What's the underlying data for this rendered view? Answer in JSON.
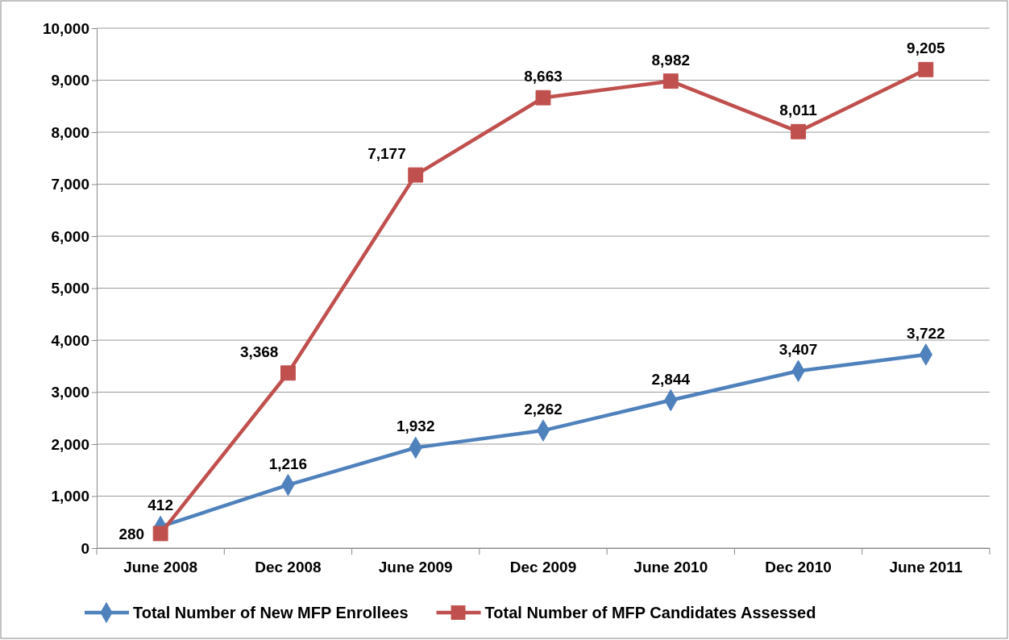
{
  "chart_data": {
    "type": "line",
    "categories": [
      "June 2008",
      "Dec 2008",
      "June 2009",
      "Dec 2009",
      "June 2010",
      "Dec 2010",
      "June 2011"
    ],
    "series": [
      {
        "name": "Total Number of New MFP Enrollees",
        "color": "#4f81bd",
        "marker": "diamond",
        "values": [
          412,
          1216,
          1932,
          2262,
          2844,
          3407,
          3722
        ],
        "value_labels": [
          "412",
          "1,216",
          "1,932",
          "2,262",
          "2,844",
          "3,407",
          "3,722"
        ]
      },
      {
        "name": "Total Number of MFP Candidates Assessed",
        "color": "#c0504d",
        "marker": "square",
        "values": [
          280,
          3368,
          7177,
          8663,
          8982,
          8011,
          9205
        ],
        "value_labels": [
          "280",
          "3,368",
          "7,177",
          "8,663",
          "8,982",
          "8,011",
          "9,205"
        ]
      }
    ],
    "ylim": [
      0,
      10000
    ],
    "yticks": [
      {
        "value": 0,
        "label": "0"
      },
      {
        "value": 1000,
        "label": "1,000"
      },
      {
        "value": 2000,
        "label": "2,000"
      },
      {
        "value": 3000,
        "label": "3,000"
      },
      {
        "value": 4000,
        "label": "4,000"
      },
      {
        "value": 5000,
        "label": "5,000"
      },
      {
        "value": 6000,
        "label": "6,000"
      },
      {
        "value": 7000,
        "label": "7,000"
      },
      {
        "value": 8000,
        "label": "8,000"
      },
      {
        "value": 9000,
        "label": "9,000"
      },
      {
        "value": 10000,
        "label": "10,000"
      }
    ],
    "grid": "y",
    "legend": "bottom",
    "line_style": "solid"
  }
}
